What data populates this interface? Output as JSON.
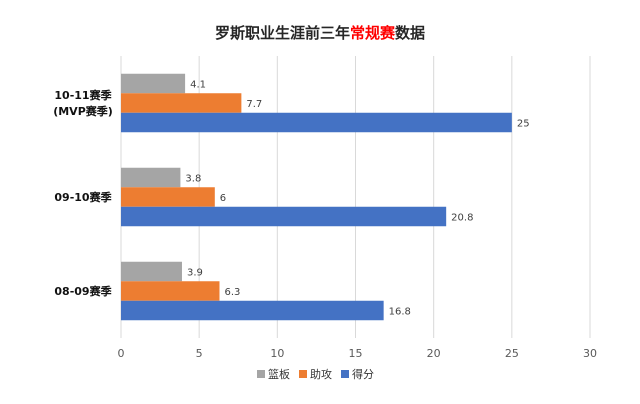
{
  "chart_data": {
    "type": "bar",
    "orientation": "horizontal",
    "title": {
      "prefix": "罗斯职业生涯前三年",
      "highlight": "常规赛",
      "suffix": "数据",
      "color": "#262626",
      "highlight_color": "#ff0000"
    },
    "categories": [
      [
        "10-11赛季",
        "(MVP赛季)"
      ],
      [
        "09-10赛季"
      ],
      [
        "08-09赛季"
      ]
    ],
    "series": [
      {
        "name": "篮板",
        "color": "#a5a5a5",
        "values": [
          4.1,
          3.8,
          3.9
        ],
        "labels": [
          "4.1",
          "3.8",
          "3.9"
        ]
      },
      {
        "name": "助攻",
        "color": "#ed7d31",
        "values": [
          7.7,
          6,
          6.3
        ],
        "labels": [
          "7.7",
          "6",
          "6.3"
        ]
      },
      {
        "name": "得分",
        "color": "#4472c4",
        "values": [
          25,
          20.8,
          16.8
        ],
        "labels": [
          "25",
          "20.8",
          "16.8"
        ]
      }
    ],
    "xlim": [
      0,
      30
    ],
    "xticks": [
      0,
      5,
      10,
      15,
      20,
      25,
      30
    ],
    "xlabel": "",
    "ylabel": "",
    "grid": "vertical",
    "grid_color": "#d9d9d9",
    "legend": "bottom-center"
  }
}
